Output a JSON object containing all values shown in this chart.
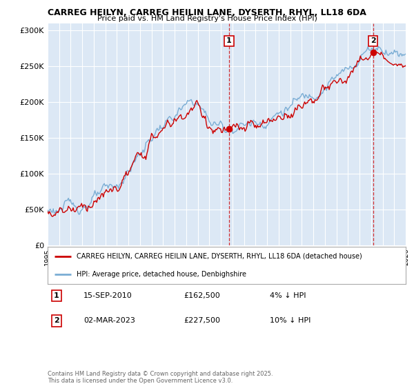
{
  "title": "CARREG HEILYN, CARREG HEILIN LANE, DYSERTH, RHYL, LL18 6DA",
  "subtitle": "Price paid vs. HM Land Registry's House Price Index (HPI)",
  "legend_property": "CARREG HEILYN, CARREG HEILIN LANE, DYSERTH, RHYL, LL18 6DA (detached house)",
  "legend_hpi": "HPI: Average price, detached house, Denbighshire",
  "transaction1_date": "15-SEP-2010",
  "transaction1_price": 162500,
  "transaction1_note": "4% ↓ HPI",
  "transaction1_year": 2010.71,
  "transaction2_date": "02-MAR-2023",
  "transaction2_price": 227500,
  "transaction2_note": "10% ↓ HPI",
  "transaction2_year": 2023.17,
  "footnote": "Contains HM Land Registry data © Crown copyright and database right 2025.\nThis data is licensed under the Open Government Licence v3.0.",
  "ylim": [
    0,
    310000
  ],
  "xlim_start": 1995,
  "xlim_end": 2026,
  "property_color": "#cc0000",
  "hpi_color": "#7aadd4",
  "background_color": "#dce8f5",
  "grid_color": "#ffffff",
  "yticks": [
    0,
    50000,
    100000,
    150000,
    200000,
    250000,
    300000
  ],
  "ytick_labels": [
    "£0",
    "£50K",
    "£100K",
    "£150K",
    "£200K",
    "£250K",
    "£300K"
  ],
  "marker_border_color": "#cc0000"
}
